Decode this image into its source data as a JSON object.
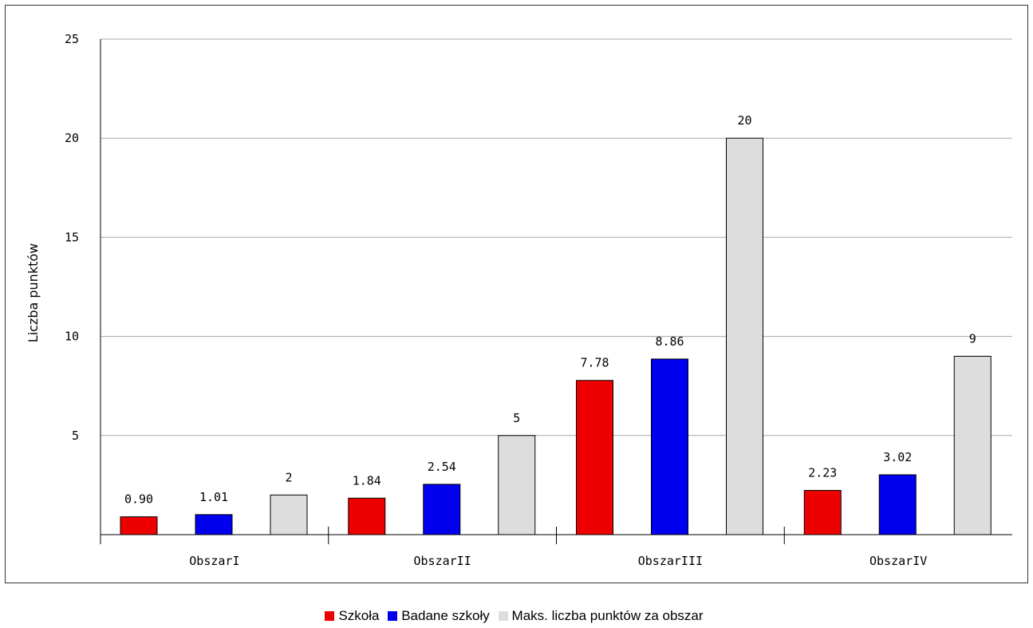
{
  "chart_data": {
    "type": "bar",
    "categories": [
      "ObszarI",
      "ObszarII",
      "ObszarIII",
      "ObszarIV"
    ],
    "series": [
      {
        "name": "Szkoła",
        "color": "#ee0000",
        "values": [
          0.9,
          1.84,
          7.78,
          2.23
        ],
        "labels": [
          "0.90",
          "1.84",
          "7.78",
          "2.23"
        ]
      },
      {
        "name": "Badane szkoły",
        "color": "#0000ee",
        "values": [
          1.01,
          2.54,
          8.86,
          3.02
        ],
        "labels": [
          "1.01",
          "2.54",
          "8.86",
          "3.02"
        ]
      },
      {
        "name": "Maks. liczba punktów za obszar",
        "color": "#dddddd",
        "values": [
          2,
          5,
          20,
          9
        ],
        "labels": [
          "2",
          "5",
          "20",
          "9"
        ]
      }
    ],
    "yticks": [
      5,
      10,
      15,
      20,
      25
    ],
    "ytick_labels": [
      "5",
      "10",
      "15",
      "20",
      "25"
    ],
    "ylim": [
      0,
      25
    ],
    "ylabel": "Liczba punktów",
    "xlabel": "",
    "title": "",
    "grid": true,
    "legend_position": "bottom-center"
  }
}
